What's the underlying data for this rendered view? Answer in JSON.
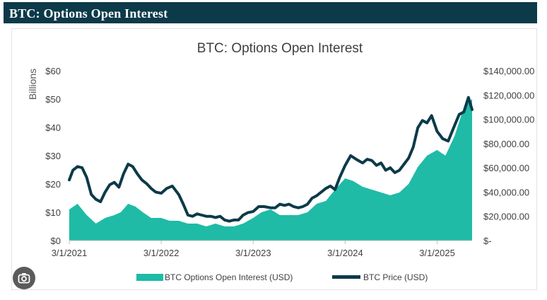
{
  "header": {
    "title": "BTC: Options Open Interest"
  },
  "chart_data": {
    "type": "area",
    "title": "BTC: Options Open Interest",
    "ylabel_left": "Billions",
    "xlabel": "",
    "x_ticks": [
      "3/1/2021",
      "3/1/2022",
      "3/1/2023",
      "3/1/2024",
      "3/1/2025"
    ],
    "y_left_ticks": [
      "$0",
      "$10",
      "$20",
      "$30",
      "$40",
      "$50",
      "$60"
    ],
    "y_right_ticks": [
      "$-",
      "$20,000.00",
      "$40,000.00",
      "$60,000.00",
      "$80,000.00",
      "$100,000.00",
      "$120,000.00",
      "$140,000.00"
    ],
    "ylim_left": [
      0,
      60
    ],
    "ylim_right": [
      0,
      140000
    ],
    "xlim": [
      2021.16,
      2025.54
    ],
    "legend": [
      "BTC Options Open Interest (USD)",
      "BTC Price (USD)"
    ],
    "legend_position": "bottom",
    "colors": {
      "open_interest": "#1fbba6",
      "price": "#0c3a49"
    },
    "series": [
      {
        "name": "BTC Options Open Interest (USD)",
        "axis": "left",
        "x": [
          2021.16,
          2021.25,
          2021.35,
          2021.45,
          2021.55,
          2021.65,
          2021.72,
          2021.8,
          2021.88,
          2021.96,
          2022.05,
          2022.16,
          2022.25,
          2022.35,
          2022.45,
          2022.55,
          2022.65,
          2022.75,
          2022.85,
          2022.95,
          2023.05,
          2023.16,
          2023.25,
          2023.35,
          2023.45,
          2023.55,
          2023.65,
          2023.75,
          2023.85,
          2023.95,
          2024.05,
          2024.16,
          2024.25,
          2024.35,
          2024.45,
          2024.55,
          2024.65,
          2024.75,
          2024.85,
          2024.95,
          2025.05,
          2025.16,
          2025.25,
          2025.35,
          2025.45,
          2025.54
        ],
        "values": [
          11,
          13,
          9,
          6,
          8,
          9,
          10,
          13,
          12,
          10,
          8,
          8,
          7,
          7,
          6,
          6,
          5,
          6,
          5,
          5,
          6,
          8,
          10,
          11,
          9,
          9,
          9,
          10,
          13,
          14,
          18,
          22,
          21,
          19,
          18,
          17,
          16,
          17,
          20,
          26,
          30,
          32,
          30,
          37,
          47,
          50
        ]
      },
      {
        "name": "BTC Price (USD)",
        "axis": "right",
        "x": [
          2021.16,
          2021.2,
          2021.25,
          2021.3,
          2021.35,
          2021.4,
          2021.45,
          2021.5,
          2021.55,
          2021.6,
          2021.65,
          2021.7,
          2021.75,
          2021.8,
          2021.85,
          2021.9,
          2021.95,
          2022.0,
          2022.05,
          2022.1,
          2022.16,
          2022.22,
          2022.28,
          2022.35,
          2022.4,
          2022.45,
          2022.5,
          2022.55,
          2022.6,
          2022.65,
          2022.7,
          2022.75,
          2022.8,
          2022.85,
          2022.9,
          2022.95,
          2023.0,
          2023.05,
          2023.1,
          2023.16,
          2023.22,
          2023.28,
          2023.35,
          2023.4,
          2023.45,
          2023.5,
          2023.55,
          2023.6,
          2023.65,
          2023.7,
          2023.75,
          2023.8,
          2023.85,
          2023.9,
          2023.95,
          2024.0,
          2024.05,
          2024.1,
          2024.16,
          2024.22,
          2024.28,
          2024.35,
          2024.4,
          2024.45,
          2024.5,
          2024.55,
          2024.6,
          2024.65,
          2024.7,
          2024.75,
          2024.8,
          2024.85,
          2024.9,
          2024.95,
          2025.0,
          2025.05,
          2025.1,
          2025.16,
          2025.22,
          2025.28,
          2025.35,
          2025.4,
          2025.45,
          2025.5,
          2025.54
        ],
        "values": [
          50000,
          58000,
          61000,
          60000,
          52000,
          38000,
          34000,
          32000,
          40000,
          46000,
          48000,
          44000,
          55000,
          63000,
          61000,
          55000,
          50000,
          47000,
          43000,
          40000,
          39000,
          43000,
          45000,
          38000,
          30000,
          21000,
          20000,
          22000,
          21000,
          20000,
          20000,
          19000,
          20000,
          17000,
          16000,
          17000,
          17000,
          21000,
          23000,
          24000,
          28000,
          28000,
          27000,
          27000,
          30000,
          29000,
          30000,
          28000,
          27000,
          28000,
          30000,
          35000,
          37000,
          40000,
          43000,
          45000,
          42000,
          52000,
          62000,
          70000,
          67000,
          64000,
          67000,
          66000,
          62000,
          64000,
          58000,
          60000,
          56000,
          58000,
          63000,
          68000,
          77000,
          93000,
          99000,
          97000,
          103000,
          90000,
          84000,
          82000,
          95000,
          104000,
          106000,
          118000,
          108000
        ]
      }
    ]
  }
}
